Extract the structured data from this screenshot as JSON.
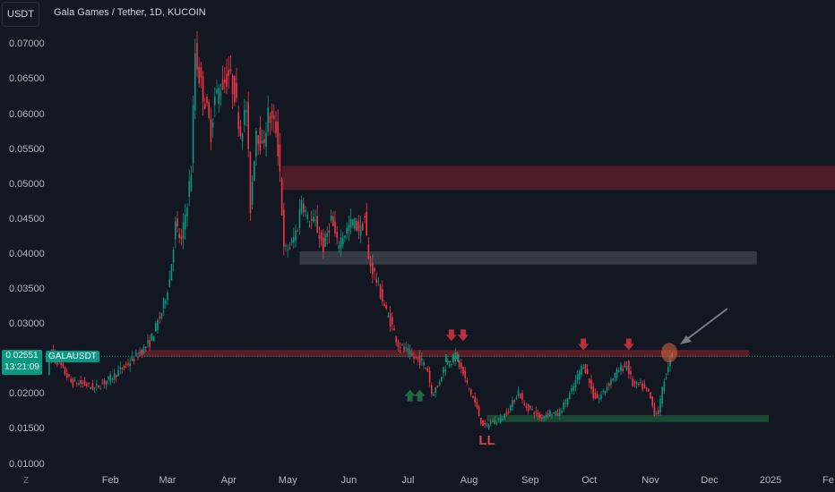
{
  "header": {
    "symbol_button": "USDT",
    "title": "Gala Games / Tether, 1D, KUCOIN"
  },
  "price_tag": {
    "value": "0.02551",
    "countdown": "13:21:09",
    "symbol": "GALAUSDT"
  },
  "zoom_button": "Z",
  "annotations": {
    "ll": "LL",
    "lh": "LH"
  },
  "colors": {
    "up": "#089981",
    "down": "#f23645",
    "background": "#131722",
    "resistance_zone": "#b22833",
    "mid_zone": "#787b86",
    "support_zone": "#1e5b3a"
  },
  "chart_data": {
    "type": "candlestick",
    "title": "Gala Games / Tether, 1D, KUCOIN",
    "ylim": [
      0.01,
      0.0745
    ],
    "y_ticks": [
      "0.07000",
      "0.06500",
      "0.06000",
      "0.05500",
      "0.05000",
      "0.04500",
      "0.04000",
      "0.03500",
      "0.03000",
      "0.02000",
      "0.01500",
      "0.01000"
    ],
    "x_ticks": [
      "Feb",
      "Mar",
      "Apr",
      "May",
      "Jun",
      "Jul",
      "Aug",
      "Sep",
      "Oct",
      "Nov",
      "Dec",
      "2025",
      "Fe"
    ],
    "last_price": 0.02551,
    "path_points": [
      [
        "2024-01-01",
        0.0235
      ],
      [
        "2024-01-03",
        0.0262
      ],
      [
        "2024-01-08",
        0.024
      ],
      [
        "2024-01-13",
        0.0218
      ],
      [
        "2024-01-20",
        0.0215
      ],
      [
        "2024-01-25",
        0.0209
      ],
      [
        "2024-02-01",
        0.0222
      ],
      [
        "2024-02-08",
        0.0237
      ],
      [
        "2024-02-15",
        0.0255
      ],
      [
        "2024-02-22",
        0.0275
      ],
      [
        "2024-02-28",
        0.0318
      ],
      [
        "2024-03-03",
        0.0365
      ],
      [
        "2024-03-06",
        0.0442
      ],
      [
        "2024-03-09",
        0.0418
      ],
      [
        "2024-03-12",
        0.0478
      ],
      [
        "2024-03-14",
        0.052
      ],
      [
        "2024-03-16",
        0.069
      ],
      [
        "2024-03-18",
        0.0655
      ],
      [
        "2024-03-21",
        0.062
      ],
      [
        "2024-03-24",
        0.0575
      ],
      [
        "2024-03-26",
        0.0625
      ],
      [
        "2024-03-29",
        0.064
      ],
      [
        "2024-04-02",
        0.0658
      ],
      [
        "2024-04-05",
        0.0632
      ],
      [
        "2024-04-08",
        0.0575
      ],
      [
        "2024-04-11",
        0.061
      ],
      [
        "2024-04-13",
        0.0468
      ],
      [
        "2024-04-16",
        0.0582
      ],
      [
        "2024-04-19",
        0.0552
      ],
      [
        "2024-04-22",
        0.06
      ],
      [
        "2024-04-26",
        0.058
      ],
      [
        "2024-04-28",
        0.052
      ],
      [
        "2024-04-30",
        0.0405
      ],
      [
        "2024-05-04",
        0.0415
      ],
      [
        "2024-05-07",
        0.0442
      ],
      [
        "2024-05-09",
        0.0482
      ],
      [
        "2024-05-12",
        0.045
      ],
      [
        "2024-05-16",
        0.0445
      ],
      [
        "2024-05-20",
        0.041
      ],
      [
        "2024-05-24",
        0.0452
      ],
      [
        "2024-05-27",
        0.0415
      ],
      [
        "2024-05-31",
        0.0432
      ],
      [
        "2024-06-04",
        0.0448
      ],
      [
        "2024-06-08",
        0.0435
      ],
      [
        "2024-06-10",
        0.0454
      ],
      [
        "2024-06-12",
        0.0392
      ],
      [
        "2024-06-15",
        0.0372
      ],
      [
        "2024-06-18",
        0.0345
      ],
      [
        "2024-06-21",
        0.0318
      ],
      [
        "2024-06-24",
        0.0298
      ],
      [
        "2024-06-27",
        0.0272
      ],
      [
        "2024-07-01",
        0.0263
      ],
      [
        "2024-07-05",
        0.0252
      ],
      [
        "2024-07-09",
        0.0248
      ],
      [
        "2024-07-12",
        0.0235
      ],
      [
        "2024-07-14",
        0.0202
      ],
      [
        "2024-07-17",
        0.0212
      ],
      [
        "2024-07-20",
        0.0238
      ],
      [
        "2024-07-23",
        0.0247
      ],
      [
        "2024-07-26",
        0.0255
      ],
      [
        "2024-07-29",
        0.0236
      ],
      [
        "2024-08-02",
        0.0208
      ],
      [
        "2024-08-05",
        0.0188
      ],
      [
        "2024-08-08",
        0.0162
      ],
      [
        "2024-08-10",
        0.0154
      ],
      [
        "2024-08-14",
        0.0162
      ],
      [
        "2024-08-18",
        0.0165
      ],
      [
        "2024-08-21",
        0.0175
      ],
      [
        "2024-08-24",
        0.0188
      ],
      [
        "2024-08-27",
        0.0205
      ],
      [
        "2024-08-30",
        0.0184
      ],
      [
        "2024-09-03",
        0.0178
      ],
      [
        "2024-09-07",
        0.0167
      ],
      [
        "2024-09-12",
        0.0175
      ],
      [
        "2024-09-16",
        0.0172
      ],
      [
        "2024-09-19",
        0.0185
      ],
      [
        "2024-09-23",
        0.0205
      ],
      [
        "2024-09-27",
        0.0233
      ],
      [
        "2024-09-29",
        0.0244
      ],
      [
        "2024-10-01",
        0.0228
      ],
      [
        "2024-10-04",
        0.0198
      ],
      [
        "2024-10-07",
        0.0195
      ],
      [
        "2024-10-10",
        0.0208
      ],
      [
        "2024-10-14",
        0.0225
      ],
      [
        "2024-10-18",
        0.0238
      ],
      [
        "2024-10-21",
        0.0242
      ],
      [
        "2024-10-24",
        0.0215
      ],
      [
        "2024-10-28",
        0.0213
      ],
      [
        "2024-11-01",
        0.0203
      ],
      [
        "2024-11-04",
        0.0175
      ],
      [
        "2024-11-06",
        0.0175
      ],
      [
        "2024-11-09",
        0.0222
      ],
      [
        "2024-11-11",
        0.0236
      ],
      [
        "2024-11-12",
        0.0255
      ]
    ],
    "zones": [
      {
        "name": "resistance-top",
        "from": "2024-04-28",
        "to": "2025-02-10",
        "low": 0.0493,
        "high": 0.0527
      },
      {
        "name": "mid-range",
        "from": "2024-05-07",
        "to": "2024-12-25",
        "low": 0.0386,
        "high": 0.0405
      },
      {
        "name": "resistance-main",
        "from": "2024-02-15",
        "to": "2024-12-21",
        "low": 0.0254,
        "high": 0.0264
      },
      {
        "name": "support",
        "from": "2024-08-10",
        "to": "2024-12-31",
        "low": 0.0161,
        "high": 0.0171
      }
    ],
    "markers": {
      "down_arrows": [
        [
          "2024-07-23",
          0.0278
        ],
        [
          "2024-07-29",
          0.0278
        ],
        [
          "2024-09-28",
          0.0265
        ],
        [
          "2024-10-21",
          0.0265
        ]
      ],
      "up_arrows": [
        [
          "2024-07-02",
          0.0206
        ],
        [
          "2024-07-07",
          0.0206
        ]
      ],
      "circle": [
        "2024-11-11",
        0.0264
      ],
      "pointer_arrow": {
        "from": [
          "2024-12-10",
          0.0323
        ],
        "to": [
          "2024-11-16",
          0.0272
        ]
      },
      "ll_label": [
        "2024-08-10",
        0.0135
      ],
      "lh_label": [
        "2024-07-24",
        0.0252
      ]
    }
  }
}
